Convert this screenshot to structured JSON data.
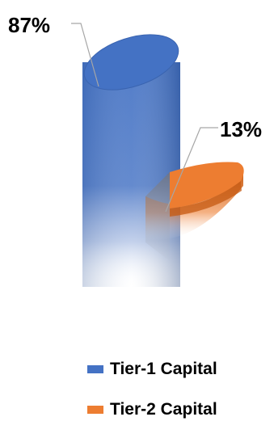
{
  "chart_data": {
    "type": "pie",
    "style": "3d-exploded",
    "title": "",
    "categories": [
      "Tier-1 Capital",
      "Tier-2 Capital"
    ],
    "values": [
      87,
      13
    ],
    "unit": "%",
    "labels": [
      "87%",
      "13%"
    ],
    "colors": [
      "#4472c4",
      "#ed7d31"
    ],
    "legend_position": "bottom"
  }
}
